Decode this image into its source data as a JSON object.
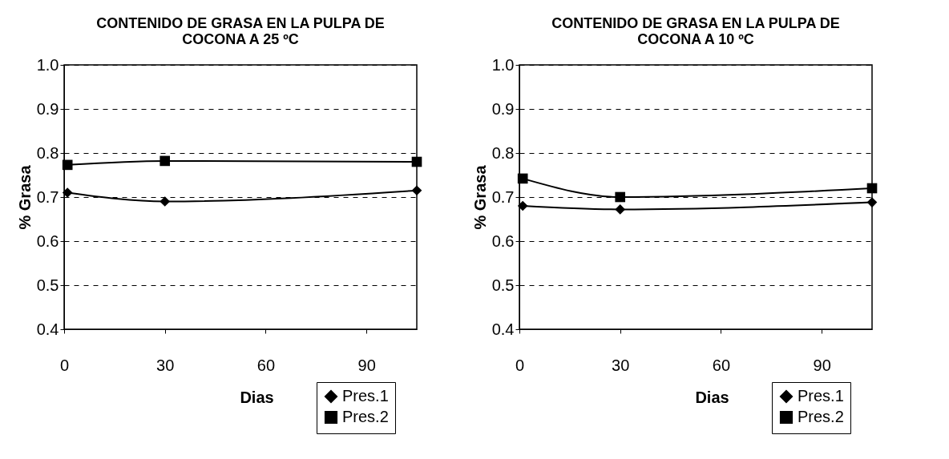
{
  "chart_data": [
    {
      "type": "line",
      "title": "CONTENIDO DE GRASA EN LA PULPA DE\nCOCONA A 25 ºC",
      "xlabel": "Dias",
      "ylabel": "% Grasa",
      "x": [
        1,
        30,
        105
      ],
      "xlim": [
        0,
        105
      ],
      "xticks": [
        0,
        30,
        60,
        90
      ],
      "ylim": [
        0.4,
        1.0
      ],
      "yticks": [
        0.4,
        0.5,
        0.6,
        0.7,
        0.8,
        0.9,
        {
          "value": 1,
          "label": "1.0"
        }
      ],
      "grid": "y",
      "legend": "bottom right",
      "series": [
        {
          "name": "Pres.1",
          "color": "#000000",
          "marker": "diamond",
          "values": [
            0.71,
            0.69,
            0.715
          ]
        },
        {
          "name": "Pres.2",
          "color": "#000000",
          "marker": "square",
          "values": [
            0.773,
            0.782,
            0.78
          ]
        }
      ]
    },
    {
      "type": "line",
      "title": "CONTENIDO DE GRASA EN LA PULPA DE\nCOCONA A 10 ºC",
      "xlabel": "Dias",
      "ylabel": "% Grasa",
      "x": [
        1,
        30,
        105
      ],
      "xlim": [
        0,
        105
      ],
      "xticks": [
        0,
        30,
        60,
        90
      ],
      "ylim": [
        0.4,
        1.0
      ],
      "yticks": [
        0.4,
        0.5,
        0.6,
        0.7,
        0.8,
        0.9,
        {
          "value": 1,
          "label": "1.0"
        }
      ],
      "grid": "y",
      "legend": "bottom right",
      "series": [
        {
          "name": "Pres.1",
          "color": "#000000",
          "marker": "diamond",
          "values": [
            0.68,
            0.672,
            0.688
          ]
        },
        {
          "name": "Pres.2",
          "color": "#000000",
          "marker": "square",
          "values": [
            0.742,
            0.7,
            0.72
          ]
        }
      ]
    }
  ]
}
